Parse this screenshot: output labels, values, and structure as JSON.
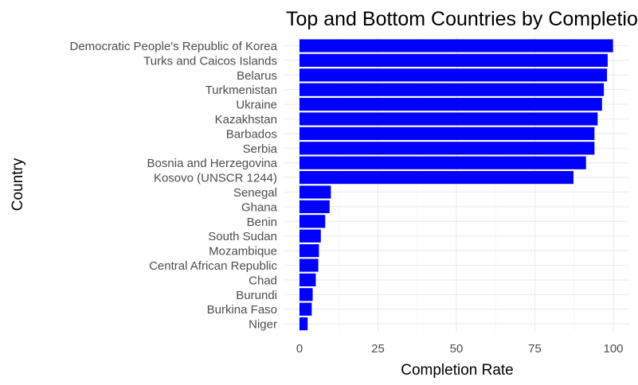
{
  "chart_data": {
    "type": "bar",
    "orientation": "horizontal",
    "title": "Top and Bottom Countries by Completion Rate",
    "xlabel": "Completion Rate",
    "ylabel": "Country",
    "xlim": [
      0,
      103
    ],
    "x_ticks": [
      "0",
      "25",
      "50",
      "75",
      "100"
    ],
    "grid": true,
    "legend": "none",
    "bar_color": "#0000FF",
    "categories": [
      "Democratic People's Republic of Korea",
      "Turks and Caicos Islands",
      "Belarus",
      "Turkmenistan",
      "Ukraine",
      "Kazakhstan",
      "Barbados",
      "Serbia",
      "Bosnia and Herzegovina",
      "Kosovo (UNSCR 1244)",
      "Senegal",
      "Ghana",
      "Benin",
      "South Sudan",
      "Mozambique",
      "Central African Republic",
      "Chad",
      "Burundi",
      "Burkina Faso",
      "Niger"
    ],
    "values": [
      99.9,
      98.2,
      98.0,
      97.0,
      96.4,
      95.0,
      94.0,
      94.0,
      91.3,
      87.3,
      10.0,
      9.6,
      8.2,
      6.8,
      6.2,
      6.0,
      5.2,
      4.2,
      3.9,
      2.6
    ]
  }
}
